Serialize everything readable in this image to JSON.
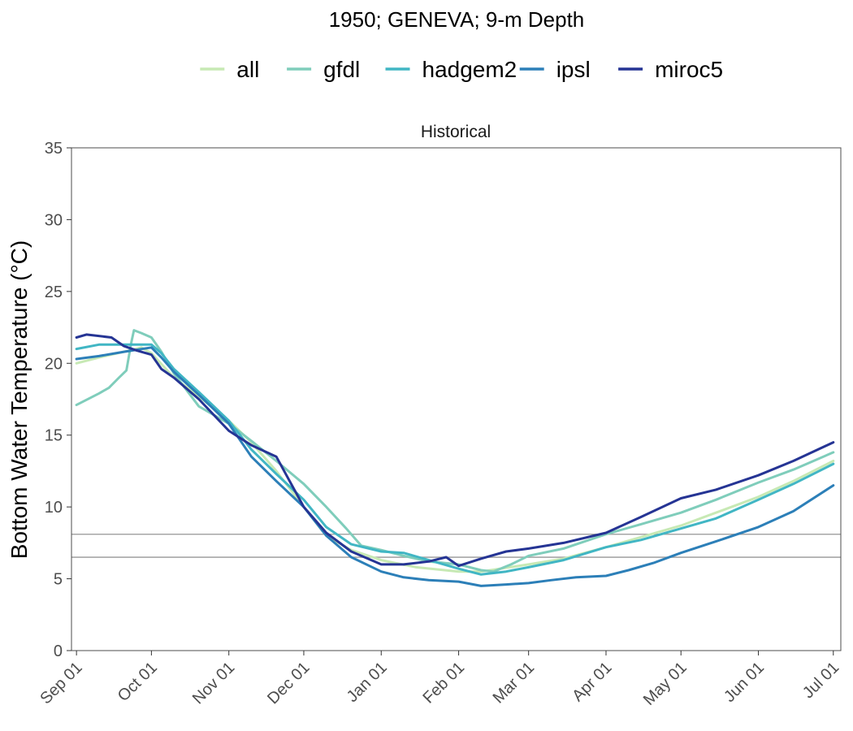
{
  "chart_data": {
    "type": "line",
    "title": "1950; GENEVA; 9-m Depth",
    "facet_label": "Historical",
    "ylabel": "Bottom Water Temperature (°C)",
    "xlabel": "",
    "ylim": [
      0,
      35
    ],
    "y_ticks": [
      0,
      5,
      10,
      15,
      20,
      25,
      30,
      35
    ],
    "x_domain": [
      "1950-08-30",
      "1951-07-04"
    ],
    "x_ticks": [
      {
        "date": "1950-09-01",
        "label": "Sep 01"
      },
      {
        "date": "1950-10-01",
        "label": "Oct 01"
      },
      {
        "date": "1950-11-01",
        "label": "Nov 01"
      },
      {
        "date": "1950-12-01",
        "label": "Dec 01"
      },
      {
        "date": "1951-01-01",
        "label": "Jan 01"
      },
      {
        "date": "1951-02-01",
        "label": "Feb 01"
      },
      {
        "date": "1951-03-01",
        "label": "Mar 01"
      },
      {
        "date": "1951-04-01",
        "label": "Apr 01"
      },
      {
        "date": "1951-05-01",
        "label": "May 01"
      },
      {
        "date": "1951-06-01",
        "label": "Jun 01"
      },
      {
        "date": "1951-07-01",
        "label": "Jul 01"
      }
    ],
    "hlines": [
      8.1,
      6.5
    ],
    "hline_color": "#a6a6a6",
    "grid": false,
    "legend_position": "top",
    "series": [
      {
        "name": "all",
        "color": "#c7e9b4",
        "points": [
          [
            "1950-09-01",
            20.0
          ],
          [
            "1950-09-10",
            20.4
          ],
          [
            "1950-09-20",
            20.8
          ],
          [
            "1950-09-27",
            21.1
          ],
          [
            "1950-10-01",
            20.7
          ],
          [
            "1950-10-10",
            19.0
          ],
          [
            "1950-10-20",
            17.7
          ],
          [
            "1950-11-01",
            16.0
          ],
          [
            "1950-11-10",
            14.5
          ],
          [
            "1950-11-20",
            12.5
          ],
          [
            "1950-12-01",
            10.0
          ],
          [
            "1950-12-10",
            8.0
          ],
          [
            "1950-12-20",
            7.0
          ],
          [
            "1951-01-01",
            6.3
          ],
          [
            "1951-01-15",
            5.8
          ],
          [
            "1951-02-01",
            5.5
          ],
          [
            "1951-02-10",
            5.5
          ],
          [
            "1951-03-01",
            6.0
          ],
          [
            "1951-03-15",
            6.4
          ],
          [
            "1951-04-01",
            7.2
          ],
          [
            "1951-04-15",
            7.9
          ],
          [
            "1951-05-01",
            8.7
          ],
          [
            "1951-05-15",
            9.6
          ],
          [
            "1951-06-01",
            10.7
          ],
          [
            "1951-06-15",
            11.8
          ],
          [
            "1951-07-01",
            13.2
          ]
        ]
      },
      {
        "name": "gfdl",
        "color": "#7fcdbb",
        "points": [
          [
            "1950-09-01",
            17.1
          ],
          [
            "1950-09-10",
            17.9
          ],
          [
            "1950-09-14",
            18.3
          ],
          [
            "1950-09-18",
            19.0
          ],
          [
            "1950-09-21",
            19.5
          ],
          [
            "1950-09-23",
            21.5
          ],
          [
            "1950-09-24",
            22.3
          ],
          [
            "1950-09-27",
            22.1
          ],
          [
            "1950-10-01",
            21.8
          ],
          [
            "1950-10-05",
            20.8
          ],
          [
            "1950-10-10",
            19.3
          ],
          [
            "1950-10-20",
            17.0
          ],
          [
            "1950-11-01",
            15.8
          ],
          [
            "1950-11-10",
            14.6
          ],
          [
            "1950-11-20",
            13.2
          ],
          [
            "1950-12-01",
            11.6
          ],
          [
            "1950-12-10",
            10.0
          ],
          [
            "1950-12-18",
            8.5
          ],
          [
            "1950-12-24",
            7.3
          ],
          [
            "1951-01-01",
            7.0
          ],
          [
            "1951-01-10",
            6.6
          ],
          [
            "1951-01-20",
            6.2
          ],
          [
            "1951-02-01",
            6.0
          ],
          [
            "1951-02-10",
            5.6
          ],
          [
            "1951-02-15",
            5.5
          ],
          [
            "1951-02-22",
            6.0
          ],
          [
            "1951-03-01",
            6.6
          ],
          [
            "1951-03-15",
            7.1
          ],
          [
            "1951-04-01",
            8.1
          ],
          [
            "1951-04-15",
            8.8
          ],
          [
            "1951-05-01",
            9.6
          ],
          [
            "1951-05-15",
            10.5
          ],
          [
            "1951-06-01",
            11.7
          ],
          [
            "1951-06-15",
            12.6
          ],
          [
            "1951-07-01",
            13.8
          ]
        ]
      },
      {
        "name": "hadgem2",
        "color": "#41b6c4",
        "points": [
          [
            "1950-09-01",
            21.0
          ],
          [
            "1950-09-10",
            21.3
          ],
          [
            "1950-09-20",
            21.3
          ],
          [
            "1950-10-01",
            21.3
          ],
          [
            "1950-10-05",
            20.7
          ],
          [
            "1950-10-10",
            19.6
          ],
          [
            "1950-10-20",
            18.0
          ],
          [
            "1950-11-01",
            16.0
          ],
          [
            "1950-11-10",
            14.0
          ],
          [
            "1950-11-20",
            12.3
          ],
          [
            "1950-12-01",
            10.5
          ],
          [
            "1950-12-10",
            8.6
          ],
          [
            "1950-12-20",
            7.4
          ],
          [
            "1951-01-01",
            6.9
          ],
          [
            "1951-01-10",
            6.8
          ],
          [
            "1951-01-20",
            6.3
          ],
          [
            "1951-02-01",
            5.7
          ],
          [
            "1951-02-10",
            5.3
          ],
          [
            "1951-02-20",
            5.5
          ],
          [
            "1951-03-01",
            5.8
          ],
          [
            "1951-03-15",
            6.3
          ],
          [
            "1951-04-01",
            7.2
          ],
          [
            "1951-04-15",
            7.7
          ],
          [
            "1951-05-01",
            8.5
          ],
          [
            "1951-05-15",
            9.2
          ],
          [
            "1951-06-01",
            10.5
          ],
          [
            "1951-06-15",
            11.6
          ],
          [
            "1951-07-01",
            13.0
          ]
        ]
      },
      {
        "name": "ipsl",
        "color": "#2c7fb8",
        "points": [
          [
            "1950-09-01",
            20.3
          ],
          [
            "1950-09-10",
            20.5
          ],
          [
            "1950-09-20",
            20.8
          ],
          [
            "1950-10-01",
            21.1
          ],
          [
            "1950-10-05",
            20.4
          ],
          [
            "1950-10-10",
            19.4
          ],
          [
            "1950-10-20",
            17.8
          ],
          [
            "1950-11-01",
            15.8
          ],
          [
            "1950-11-10",
            13.5
          ],
          [
            "1950-11-20",
            11.8
          ],
          [
            "1950-12-01",
            10.0
          ],
          [
            "1950-12-10",
            8.0
          ],
          [
            "1950-12-20",
            6.5
          ],
          [
            "1951-01-01",
            5.5
          ],
          [
            "1951-01-10",
            5.1
          ],
          [
            "1951-01-20",
            4.9
          ],
          [
            "1951-02-01",
            4.8
          ],
          [
            "1951-02-10",
            4.5
          ],
          [
            "1951-02-20",
            4.6
          ],
          [
            "1951-03-01",
            4.7
          ],
          [
            "1951-03-10",
            4.9
          ],
          [
            "1951-03-20",
            5.1
          ],
          [
            "1951-04-01",
            5.2
          ],
          [
            "1951-04-10",
            5.6
          ],
          [
            "1951-04-20",
            6.1
          ],
          [
            "1951-05-01",
            6.8
          ],
          [
            "1951-05-15",
            7.6
          ],
          [
            "1951-06-01",
            8.6
          ],
          [
            "1951-06-15",
            9.7
          ],
          [
            "1951-07-01",
            11.5
          ]
        ]
      },
      {
        "name": "miroc5",
        "color": "#253494",
        "points": [
          [
            "1950-09-01",
            21.8
          ],
          [
            "1950-09-05",
            22.0
          ],
          [
            "1950-09-15",
            21.8
          ],
          [
            "1950-09-20",
            21.2
          ],
          [
            "1950-09-25",
            20.9
          ],
          [
            "1950-10-01",
            20.6
          ],
          [
            "1950-10-05",
            19.6
          ],
          [
            "1950-10-10",
            19.0
          ],
          [
            "1950-10-20",
            17.5
          ],
          [
            "1950-11-01",
            15.3
          ],
          [
            "1950-11-10",
            14.3
          ],
          [
            "1950-11-20",
            13.5
          ],
          [
            "1950-12-01",
            10.0
          ],
          [
            "1950-12-10",
            8.2
          ],
          [
            "1950-12-20",
            6.9
          ],
          [
            "1951-01-01",
            6.0
          ],
          [
            "1951-01-10",
            6.0
          ],
          [
            "1951-01-20",
            6.2
          ],
          [
            "1951-01-27",
            6.5
          ],
          [
            "1951-02-01",
            5.9
          ],
          [
            "1951-02-10",
            6.4
          ],
          [
            "1951-02-20",
            6.9
          ],
          [
            "1951-03-01",
            7.1
          ],
          [
            "1951-03-15",
            7.5
          ],
          [
            "1951-04-01",
            8.2
          ],
          [
            "1951-04-15",
            9.3
          ],
          [
            "1951-05-01",
            10.6
          ],
          [
            "1951-05-15",
            11.2
          ],
          [
            "1951-06-01",
            12.2
          ],
          [
            "1951-06-15",
            13.2
          ],
          [
            "1951-07-01",
            14.5
          ]
        ]
      }
    ]
  }
}
